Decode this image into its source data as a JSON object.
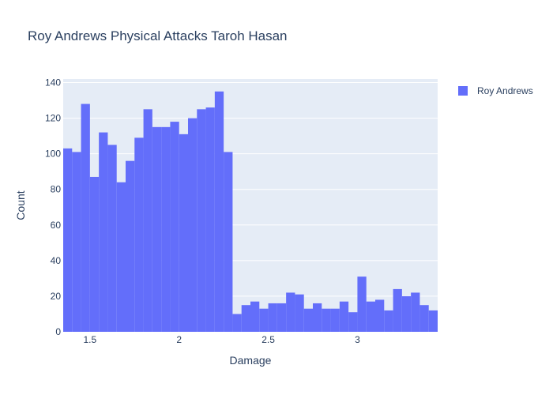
{
  "chart_data": {
    "type": "bar",
    "title": "Roy Andrews Physical Attacks Taroh Hasan",
    "xlabel": "Damage",
    "ylabel": "Count",
    "xlim": [
      1.35,
      3.45
    ],
    "ylim": [
      0,
      142
    ],
    "x_ticks": [
      1.5,
      2,
      2.5,
      3
    ],
    "x_tick_labels": [
      "1.5",
      "2",
      "2.5",
      "3"
    ],
    "y_ticks": [
      0,
      20,
      40,
      60,
      80,
      100,
      120,
      140
    ],
    "y_tick_labels": [
      "0",
      "20",
      "40",
      "60",
      "80",
      "100",
      "120",
      "140"
    ],
    "grid": true,
    "legend_position": "top-right",
    "bin_start": 1.35,
    "bin_width": 0.05,
    "series": [
      {
        "name": "Roy Andrews",
        "color": "#636efa",
        "values": [
          103,
          101,
          128,
          87,
          112,
          105,
          84,
          96,
          109,
          125,
          115,
          115,
          118,
          111,
          120,
          125,
          126,
          135,
          101,
          10,
          15,
          17,
          13,
          16,
          16,
          22,
          21,
          13,
          16,
          13,
          13,
          17,
          11,
          31,
          17,
          18,
          12,
          24,
          20,
          22,
          15,
          12
        ]
      }
    ]
  }
}
